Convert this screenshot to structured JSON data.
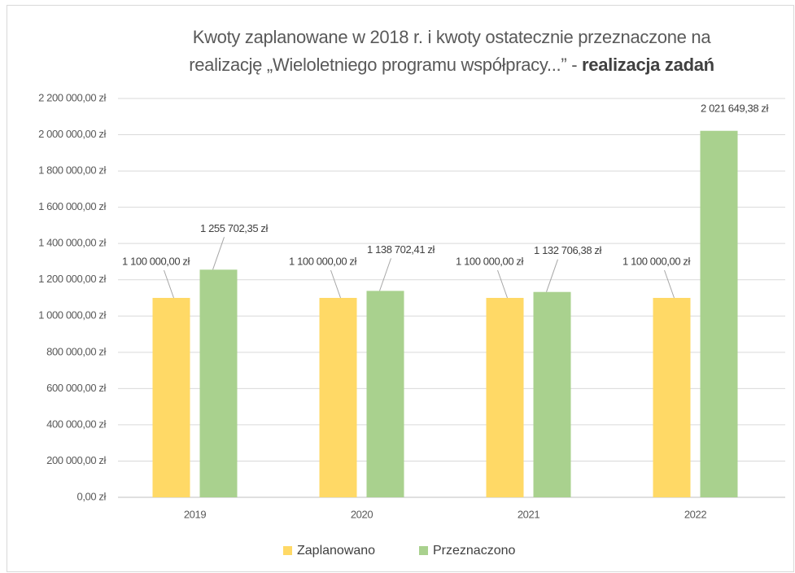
{
  "chart_data": {
    "type": "bar",
    "title_lines": [
      "Kwoty zaplanowane  w 2018 r. i kwoty ostatecznie przeznaczone na",
      "realizację „Wieloletniego  programu współpracy...” - "
    ],
    "title_bold": "realizacja zadań",
    "categories": [
      "2019",
      "2020",
      "2021",
      "2022"
    ],
    "series": [
      {
        "name": "Zaplanowano",
        "color": "#FFD966",
        "values": [
          1100000,
          1100000,
          1100000,
          1100000
        ],
        "value_labels": [
          "1 100 000,00 zł",
          "1 100 000,00 zł",
          "1 100 000,00 zł",
          "1 100 000,00 zł"
        ]
      },
      {
        "name": "Przeznaczono",
        "color": "#A9D18E",
        "values": [
          1255702.35,
          1138702.41,
          1132706.38,
          2021649.38
        ],
        "value_labels": [
          "1 255 702,35 zł",
          "1 138 702,41 zł",
          "1 132 706,38 zł",
          "2 021 649,38 zł"
        ]
      }
    ],
    "ylim": [
      0,
      2200000
    ],
    "yticks": [
      {
        "value": 0,
        "label": "0,00 zł"
      },
      {
        "value": 200000,
        "label": "200 000,00 zł"
      },
      {
        "value": 400000,
        "label": "400 000,00 zł"
      },
      {
        "value": 600000,
        "label": "600 000,00 zł"
      },
      {
        "value": 800000,
        "label": "800 000,00 zł"
      },
      {
        "value": 1000000,
        "label": "1 000 000,00 zł"
      },
      {
        "value": 1200000,
        "label": "1 200 000,00 zł"
      },
      {
        "value": 1400000,
        "label": "1 400 000,00 zł"
      },
      {
        "value": 1600000,
        "label": "1 600 000,00 zł"
      },
      {
        "value": 1800000,
        "label": "1 800 000,00 zł"
      },
      {
        "value": 2000000,
        "label": "2 000 000,00 zł"
      },
      {
        "value": 2200000,
        "label": "2 200 000,00 zł"
      }
    ],
    "grid": true,
    "legend": "bottom"
  }
}
